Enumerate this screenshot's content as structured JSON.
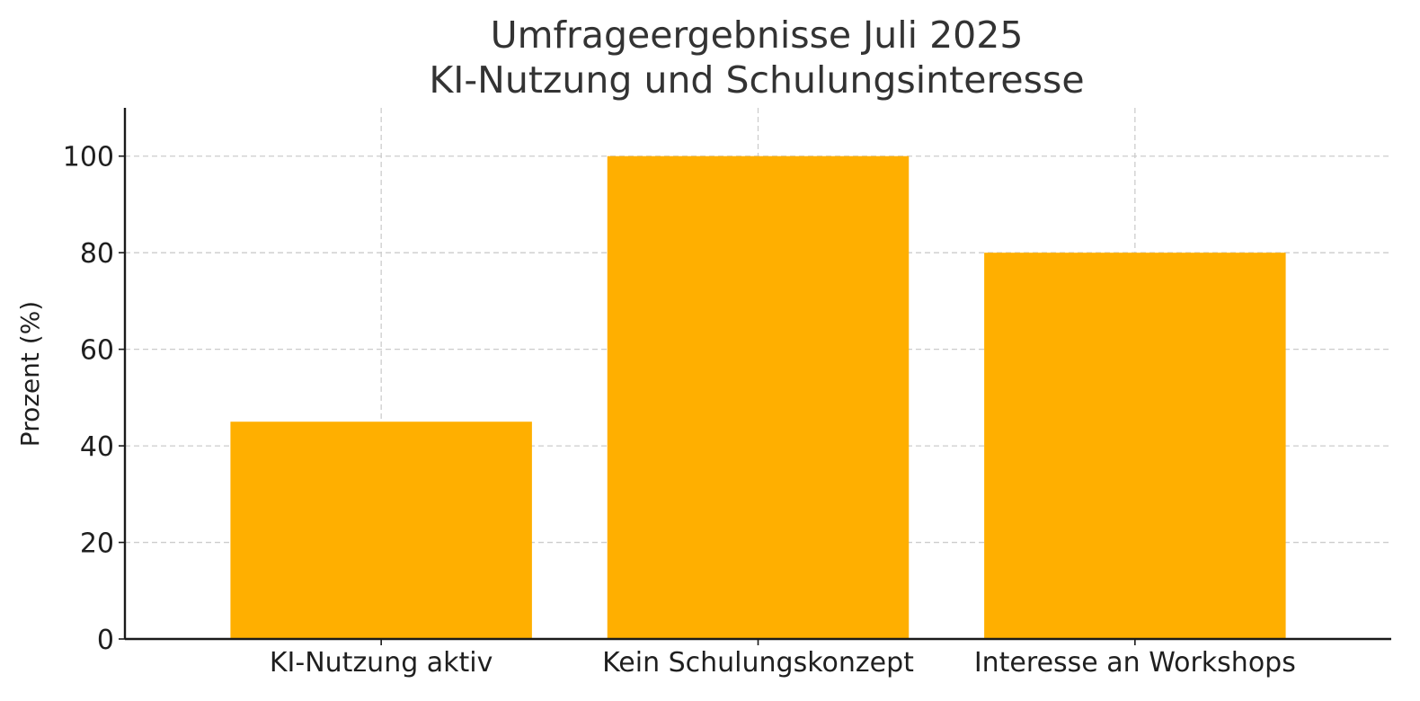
{
  "chart_data": {
    "type": "bar",
    "title_lines": [
      "Umfrageergebnisse Juli 2025",
      "KI-Nutzung und Schulungsinteresse"
    ],
    "categories": [
      "KI-Nutzung aktiv",
      "Kein Schulungskonzept",
      "Interesse an Workshops"
    ],
    "values": [
      45,
      100,
      80
    ],
    "xlabel": "",
    "ylabel": "Prozent (%)",
    "ylim": [
      0,
      110
    ],
    "yticks": [
      0,
      20,
      40,
      60,
      80,
      100
    ],
    "grid": true,
    "legend": "none",
    "bar_color": "#FFAF00"
  }
}
